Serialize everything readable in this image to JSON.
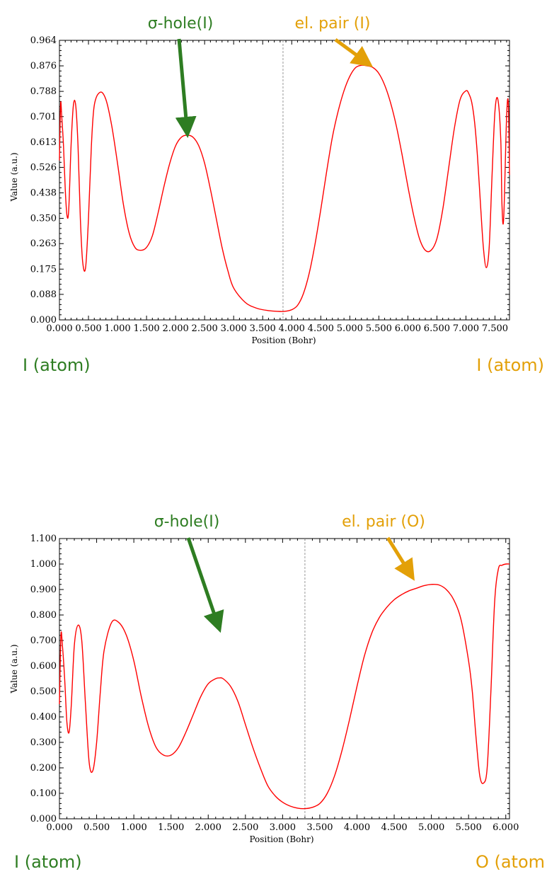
{
  "colors": {
    "curve": "#ff0000",
    "sigma": "#2e7d22",
    "pair": "#e3a008",
    "axis": "#000000",
    "divider": "#999999"
  },
  "chart_data": [
    {
      "type": "line",
      "xlabel": "Position (Bohr)",
      "ylabel": "Value (a.u.)",
      "xlim": [
        0,
        7.75
      ],
      "ylim": [
        0,
        0.964
      ],
      "x_ticks": [
        0,
        0.5,
        1.0,
        1.5,
        2.0,
        2.5,
        3.0,
        3.5,
        4.0,
        4.5,
        5.0,
        5.5,
        6.0,
        6.5,
        7.0,
        7.5
      ],
      "x_tick_labels": [
        "0.000",
        "0.500",
        "1.000",
        "1.500",
        "2.000",
        "2.500",
        "3.000",
        "3.500",
        "4.000",
        "4.500",
        "5.000",
        "5.500",
        "6.000",
        "6.500",
        "7.000",
        "7.500"
      ],
      "y_ticks": [
        0,
        0.088,
        0.175,
        0.263,
        0.35,
        0.438,
        0.526,
        0.613,
        0.701,
        0.788,
        0.876,
        0.964
      ],
      "y_tick_labels": [
        "0.000",
        "0.088",
        "0.175",
        "0.263",
        "0.350",
        "0.438",
        "0.526",
        "0.613",
        "0.701",
        "0.788",
        "0.876",
        "0.964"
      ],
      "divider_x": 3.85,
      "series": [
        {
          "x": [
            0.0,
            0.02,
            0.04,
            0.07,
            0.1,
            0.13,
            0.16,
            0.2,
            0.24,
            0.28,
            0.32,
            0.36,
            0.4,
            0.45,
            0.5,
            0.55,
            0.6,
            0.7,
            0.8,
            0.9,
            1.0,
            1.1,
            1.2,
            1.3,
            1.4,
            1.5,
            1.6,
            1.7,
            1.8,
            1.9,
            2.0,
            2.1,
            2.2,
            2.3,
            2.4,
            2.5,
            2.6,
            2.7,
            2.8,
            2.9,
            3.0,
            3.2,
            3.4,
            3.6,
            3.8,
            3.9,
            4.0,
            4.1,
            4.2,
            4.3,
            4.4,
            4.5,
            4.6,
            4.7,
            4.8,
            4.9,
            5.0,
            5.1,
            5.2,
            5.3,
            5.4,
            5.5,
            5.6,
            5.7,
            5.8,
            5.9,
            6.0,
            6.1,
            6.2,
            6.3,
            6.4,
            6.5,
            6.6,
            6.7,
            6.8,
            6.9,
            7.0,
            7.05,
            7.1,
            7.15,
            7.2,
            7.25,
            7.3,
            7.35,
            7.4,
            7.45,
            7.5,
            7.55,
            7.6,
            7.62,
            7.65,
            7.7,
            7.73,
            7.75
          ],
          "y": [
            0.55,
            0.745,
            0.7,
            0.6,
            0.45,
            0.36,
            0.38,
            0.6,
            0.74,
            0.74,
            0.6,
            0.35,
            0.2,
            0.18,
            0.35,
            0.6,
            0.74,
            0.785,
            0.76,
            0.67,
            0.54,
            0.4,
            0.3,
            0.25,
            0.24,
            0.25,
            0.29,
            0.37,
            0.46,
            0.54,
            0.6,
            0.63,
            0.637,
            0.63,
            0.6,
            0.54,
            0.45,
            0.35,
            0.25,
            0.17,
            0.11,
            0.06,
            0.04,
            0.032,
            0.029,
            0.03,
            0.035,
            0.05,
            0.09,
            0.16,
            0.26,
            0.38,
            0.51,
            0.63,
            0.72,
            0.79,
            0.84,
            0.87,
            0.878,
            0.876,
            0.87,
            0.85,
            0.81,
            0.75,
            0.67,
            0.57,
            0.46,
            0.36,
            0.28,
            0.24,
            0.24,
            0.28,
            0.38,
            0.52,
            0.66,
            0.76,
            0.79,
            0.78,
            0.75,
            0.68,
            0.56,
            0.4,
            0.25,
            0.18,
            0.25,
            0.5,
            0.72,
            0.76,
            0.62,
            0.4,
            0.35,
            0.7,
            0.745,
            0.5
          ]
        }
      ]
    },
    {
      "type": "line",
      "xlabel": "Position (Bohr)",
      "ylabel": "Value (a.u.)",
      "xlim": [
        0,
        6.05
      ],
      "ylim": [
        0,
        1.1
      ],
      "x_ticks": [
        0,
        0.5,
        1.0,
        1.5,
        2.0,
        2.5,
        3.0,
        3.5,
        4.0,
        4.5,
        5.0,
        5.5,
        6.0
      ],
      "x_tick_labels": [
        "0.000",
        "0.500",
        "1.000",
        "1.500",
        "2.000",
        "2.500",
        "3.000",
        "3.500",
        "4.000",
        "4.500",
        "5.000",
        "5.500",
        "6.000"
      ],
      "y_ticks": [
        0,
        0.1,
        0.2,
        0.3,
        0.4,
        0.5,
        0.6,
        0.7,
        0.8,
        0.9,
        1.0,
        1.1
      ],
      "y_tick_labels": [
        "0.000",
        "0.100",
        "0.200",
        "0.300",
        "0.400",
        "0.500",
        "0.600",
        "0.700",
        "0.800",
        "0.900",
        "1.000",
        "1.100"
      ],
      "divider_x": 3.3,
      "series": [
        {
          "x": [
            0.0,
            0.02,
            0.04,
            0.07,
            0.1,
            0.13,
            0.16,
            0.2,
            0.25,
            0.3,
            0.35,
            0.4,
            0.45,
            0.5,
            0.55,
            0.6,
            0.7,
            0.8,
            0.9,
            1.0,
            1.1,
            1.2,
            1.3,
            1.4,
            1.5,
            1.6,
            1.7,
            1.8,
            1.9,
            2.0,
            2.1,
            2.15,
            2.2,
            2.3,
            2.4,
            2.5,
            2.6,
            2.7,
            2.8,
            2.9,
            3.0,
            3.1,
            3.2,
            3.3,
            3.4,
            3.5,
            3.6,
            3.7,
            3.8,
            3.9,
            4.0,
            4.1,
            4.2,
            4.3,
            4.4,
            4.5,
            4.6,
            4.7,
            4.8,
            4.9,
            5.0,
            5.1,
            5.2,
            5.3,
            5.4,
            5.5,
            5.55,
            5.6,
            5.65,
            5.7,
            5.75,
            5.8,
            5.85,
            5.9,
            5.95,
            6.0,
            6.05
          ],
          "y": [
            0.45,
            0.72,
            0.68,
            0.55,
            0.38,
            0.34,
            0.45,
            0.68,
            0.76,
            0.7,
            0.45,
            0.22,
            0.19,
            0.3,
            0.5,
            0.66,
            0.77,
            0.77,
            0.72,
            0.62,
            0.48,
            0.36,
            0.28,
            0.25,
            0.25,
            0.28,
            0.34,
            0.41,
            0.48,
            0.53,
            0.55,
            0.553,
            0.55,
            0.52,
            0.46,
            0.37,
            0.28,
            0.2,
            0.13,
            0.09,
            0.065,
            0.05,
            0.042,
            0.04,
            0.045,
            0.06,
            0.1,
            0.17,
            0.27,
            0.39,
            0.52,
            0.64,
            0.73,
            0.79,
            0.83,
            0.86,
            0.88,
            0.895,
            0.905,
            0.915,
            0.92,
            0.918,
            0.9,
            0.86,
            0.78,
            0.62,
            0.5,
            0.32,
            0.17,
            0.14,
            0.2,
            0.5,
            0.85,
            0.98,
            0.995,
            1.0,
            1.0
          ]
        }
      ]
    }
  ],
  "annotations": [
    {
      "sigma_label": "σ-hole(I)",
      "pair_label": "el. pair (I)",
      "left_atom": "I (atom)",
      "right_atom": "I (atom)"
    },
    {
      "sigma_label": "σ-hole(I)",
      "pair_label": "el. pair (O)",
      "left_atom": "I (atom)",
      "right_atom": "O (atom"
    }
  ]
}
